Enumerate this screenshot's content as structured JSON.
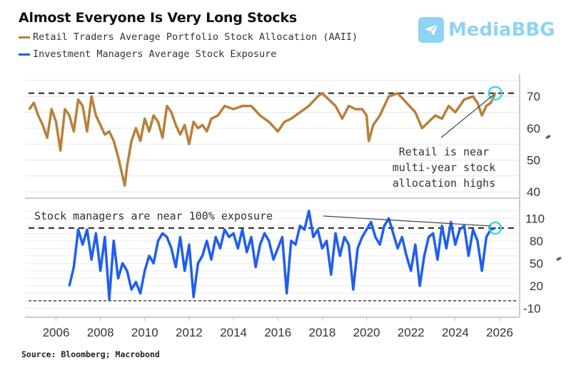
{
  "header": {
    "title": "Almost Everyone Is Very Long Stocks",
    "watermark": "MediaBBG",
    "watermark_icon": "paper-plane-icon"
  },
  "footer": {
    "source": "Source: Bloomberg; Macrobond"
  },
  "colors": {
    "retail": "#b8803a",
    "managers": "#1f5ef0",
    "highlight": "#3fd6e0",
    "watermark": "#8fd3f5"
  },
  "chart_data": [
    {
      "type": "line",
      "panel": "top",
      "title": "Almost Everyone Is Very Long Stocks",
      "legend": "Retail Traders Average Portfolio Stock Allocation (AAII)",
      "legend_placement": "top-left",
      "xlabel": "",
      "ylabel": "",
      "x_ticks": [
        "2006",
        "2008",
        "2010",
        "2012",
        "2014",
        "2016",
        "2018",
        "2020",
        "2022",
        "2024",
        "2026"
      ],
      "xlim": [
        2004.6,
        2026.9
      ],
      "y_ticks": [
        40,
        50,
        60,
        70
      ],
      "ylim": [
        38,
        77
      ],
      "grid": true,
      "reference_line": 71,
      "annotation": [
        "Retail is near",
        "multi-year stock",
        "allocation highs"
      ],
      "series": [
        {
          "name": "Retail Traders Average Portfolio Stock Allocation (AAII)",
          "x": [
            2004.8,
            2005.0,
            2005.2,
            2005.4,
            2005.6,
            2005.8,
            2006.0,
            2006.2,
            2006.4,
            2006.6,
            2006.8,
            2007.0,
            2007.2,
            2007.4,
            2007.6,
            2007.8,
            2008.0,
            2008.2,
            2008.4,
            2008.6,
            2008.8,
            2009.0,
            2009.1,
            2009.2,
            2009.4,
            2009.6,
            2009.8,
            2010.0,
            2010.2,
            2010.4,
            2010.6,
            2010.8,
            2011.0,
            2011.2,
            2011.4,
            2011.6,
            2011.8,
            2012.0,
            2012.2,
            2012.4,
            2012.6,
            2012.8,
            2013.0,
            2013.3,
            2013.6,
            2014.0,
            2014.4,
            2014.8,
            2015.2,
            2015.6,
            2016.0,
            2016.3,
            2016.6,
            2017.0,
            2017.4,
            2017.8,
            2018.0,
            2018.3,
            2018.6,
            2018.9,
            2019.2,
            2019.5,
            2019.8,
            2020.0,
            2020.1,
            2020.3,
            2020.6,
            2021.0,
            2021.4,
            2021.8,
            2022.2,
            2022.5,
            2022.8,
            2023.1,
            2023.4,
            2023.7,
            2024.0,
            2024.4,
            2024.8,
            2025.0,
            2025.2,
            2025.4,
            2025.6,
            2025.8
          ],
          "values": [
            66,
            68,
            64,
            61,
            57,
            66,
            62,
            53,
            66,
            64,
            59,
            69,
            67,
            59,
            70,
            64,
            61,
            58,
            59,
            56,
            51,
            45,
            42,
            48,
            56,
            60,
            56,
            63,
            59,
            64,
            62,
            57,
            67,
            65,
            61,
            58,
            61,
            55,
            62,
            60,
            61,
            59,
            63,
            64,
            67,
            66,
            67,
            67,
            64,
            62,
            59,
            62,
            63,
            65,
            67,
            70,
            71,
            69,
            67,
            63,
            67,
            66,
            66,
            64,
            56,
            61,
            64,
            70,
            71,
            68,
            65,
            60,
            62,
            64,
            63,
            67,
            65,
            69,
            70,
            68,
            64,
            67,
            68,
            71
          ],
          "ylim": [
            38,
            77
          ]
        }
      ]
    },
    {
      "type": "line",
      "panel": "bottom",
      "legend": "Investment Managers Average Stock Exposure",
      "legend_placement": "top-left",
      "xlabel": "",
      "ylabel": "",
      "x_ticks": [
        "2006",
        "2008",
        "2010",
        "2012",
        "2014",
        "2016",
        "2018",
        "2020",
        "2022",
        "2024",
        "2026"
      ],
      "xlim": [
        2004.6,
        2026.9
      ],
      "y_ticks": [
        110,
        80,
        50,
        20,
        -10
      ],
      "ylim": [
        -22,
        135
      ],
      "grid": true,
      "reference_lines": [
        97,
        0
      ],
      "annotation": "Stock managers are near 100% exposure",
      "series": [
        {
          "name": "Investment Managers Average Stock Exposure",
          "x": [
            2006.6,
            2006.8,
            2007.0,
            2007.2,
            2007.4,
            2007.6,
            2007.8,
            2008.0,
            2008.2,
            2008.4,
            2008.6,
            2008.8,
            2009.0,
            2009.2,
            2009.4,
            2009.6,
            2009.8,
            2010.0,
            2010.2,
            2010.4,
            2010.6,
            2010.8,
            2011.0,
            2011.2,
            2011.4,
            2011.6,
            2011.8,
            2012.0,
            2012.2,
            2012.4,
            2012.6,
            2012.8,
            2013.0,
            2013.2,
            2013.4,
            2013.6,
            2013.8,
            2014.0,
            2014.2,
            2014.4,
            2014.6,
            2014.8,
            2015.0,
            2015.2,
            2015.4,
            2015.6,
            2015.8,
            2016.0,
            2016.2,
            2016.4,
            2016.6,
            2016.8,
            2017.0,
            2017.2,
            2017.4,
            2017.6,
            2017.8,
            2018.0,
            2018.2,
            2018.4,
            2018.6,
            2018.8,
            2019.0,
            2019.2,
            2019.4,
            2019.6,
            2019.8,
            2020.0,
            2020.2,
            2020.4,
            2020.6,
            2020.8,
            2021.0,
            2021.2,
            2021.4,
            2021.6,
            2021.8,
            2022.0,
            2022.2,
            2022.4,
            2022.6,
            2022.8,
            2023.0,
            2023.2,
            2023.4,
            2023.6,
            2023.8,
            2024.0,
            2024.2,
            2024.4,
            2024.6,
            2024.8,
            2025.0,
            2025.2,
            2025.4,
            2025.6,
            2025.8
          ],
          "values": [
            20,
            45,
            95,
            75,
            95,
            55,
            90,
            40,
            85,
            2,
            80,
            30,
            50,
            40,
            15,
            25,
            10,
            40,
            60,
            50,
            80,
            90,
            85,
            70,
            45,
            85,
            40,
            75,
            5,
            50,
            60,
            80,
            55,
            85,
            70,
            95,
            85,
            90,
            70,
            95,
            65,
            85,
            45,
            75,
            90,
            80,
            55,
            70,
            85,
            10,
            80,
            75,
            100,
            95,
            120,
            85,
            95,
            70,
            80,
            35,
            90,
            60,
            85,
            75,
            15,
            70,
            85,
            95,
            105,
            85,
            75,
            100,
            110,
            90,
            70,
            85,
            60,
            40,
            75,
            20,
            60,
            85,
            90,
            55,
            100,
            70,
            105,
            75,
            95,
            100,
            60,
            95,
            80,
            40,
            85,
            95,
            97
          ],
          "ylim": [
            -22,
            135
          ]
        }
      ]
    }
  ]
}
